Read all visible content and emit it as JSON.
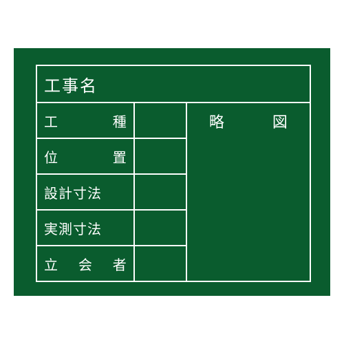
{
  "board": {
    "background_color": "#0a5c2e",
    "line_color": "#ffffff",
    "text_color": "#ffffff",
    "title": "工事名",
    "right_header": "略　図",
    "rows": [
      {
        "label_chars": [
          "工",
          "種"
        ],
        "spaced": true
      },
      {
        "label_chars": [
          "位",
          "置"
        ],
        "spaced": true
      },
      {
        "label_text": "設計寸法",
        "spaced": false
      },
      {
        "label_text": "実測寸法",
        "spaced": false
      },
      {
        "label_chars": [
          "立",
          "会",
          "者"
        ],
        "spaced": true
      }
    ]
  }
}
